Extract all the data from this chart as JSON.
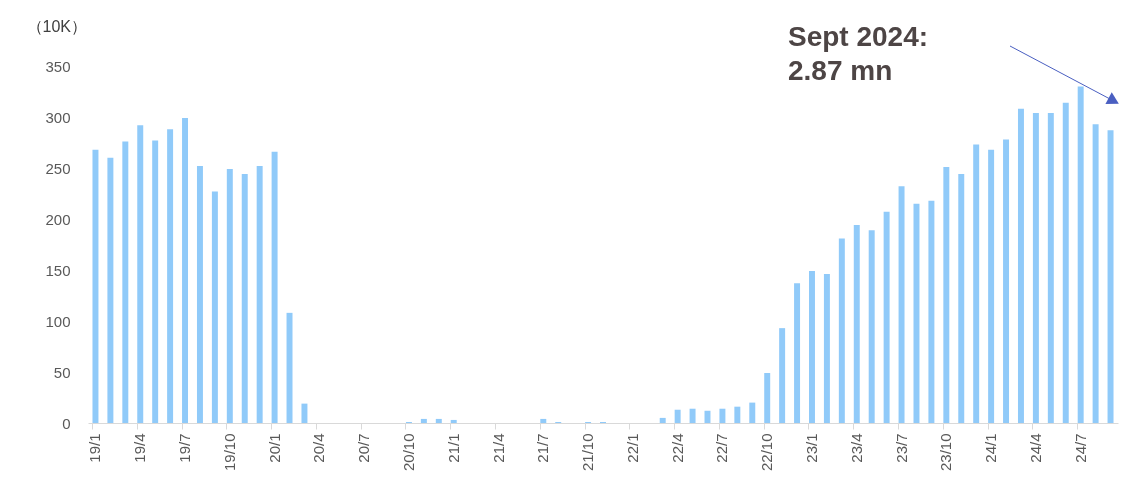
{
  "chart_data": {
    "type": "bar",
    "ylabel": "（10K）",
    "categories": [
      "19/1",
      null,
      null,
      "19/4",
      null,
      null,
      "19/7",
      null,
      null,
      "19/10",
      null,
      null,
      "20/1",
      null,
      null,
      "20/4",
      null,
      null,
      "20/7",
      null,
      null,
      "20/10",
      null,
      null,
      "21/1",
      null,
      null,
      "21/4",
      null,
      null,
      "21/7",
      null,
      null,
      "21/10",
      null,
      null,
      "22/1",
      null,
      null,
      "22/4",
      null,
      null,
      "22/7",
      null,
      null,
      "22/10",
      null,
      null,
      "23/1",
      null,
      null,
      "23/4",
      null,
      null,
      "23/7",
      null,
      null,
      "23/10",
      null,
      null,
      "24/1",
      null,
      null,
      "24/4",
      null,
      null,
      "24/7",
      null,
      null
    ],
    "values": [
      268,
      260,
      276,
      292,
      277,
      288,
      299,
      252,
      227,
      249,
      244,
      252,
      266,
      108,
      19,
      0,
      0,
      0,
      0,
      0,
      0,
      1,
      4,
      4,
      3,
      0,
      0,
      0,
      0,
      0,
      4,
      1,
      0,
      1,
      1,
      0,
      0,
      0,
      5,
      13,
      14,
      12,
      14,
      16,
      20,
      49,
      93,
      137,
      149,
      146,
      181,
      194,
      189,
      207,
      232,
      215,
      218,
      251,
      244,
      273,
      268,
      278,
      308,
      304,
      304,
      314,
      330,
      293,
      287
    ],
    "color": "#90caf9",
    "ylim": [
      0,
      350
    ],
    "yticks": [
      0,
      50,
      100,
      150,
      200,
      250,
      300,
      350
    ],
    "grid": false,
    "annotations": [
      "Sept 2024:\n 2.87 mn"
    ]
  }
}
